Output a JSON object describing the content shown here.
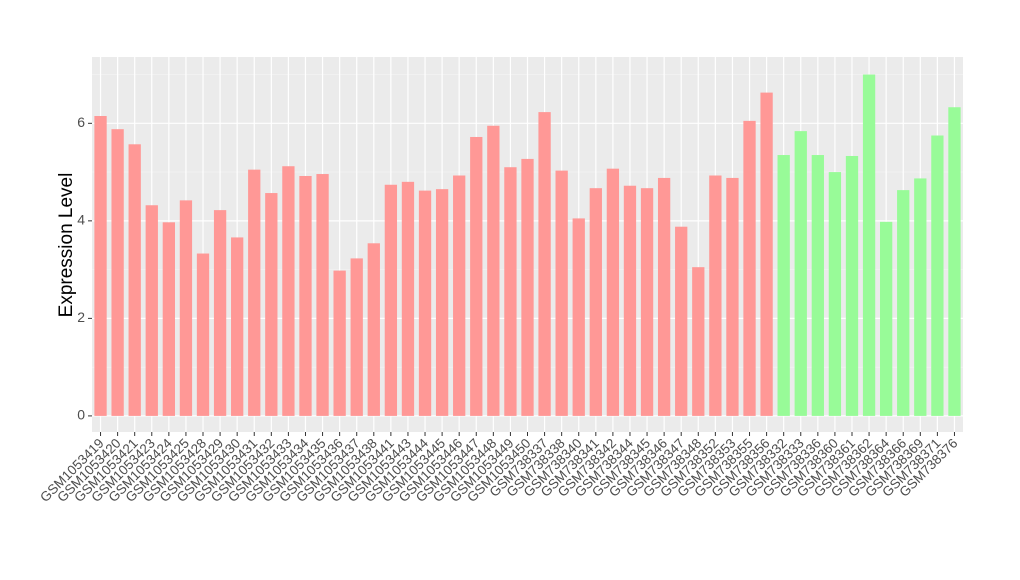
{
  "chart_data": {
    "type": "bar",
    "y_label": "Expression Level",
    "categories": [
      "GSM1053419",
      "GSM1053420",
      "GSM1053421",
      "GSM1053423",
      "GSM1053424",
      "GSM1053425",
      "GSM1053428",
      "GSM1053429",
      "GSM1053430",
      "GSM1053431",
      "GSM1053432",
      "GSM1053433",
      "GSM1053434",
      "GSM1053435",
      "GSM1053436",
      "GSM1053437",
      "GSM1053438",
      "GSM1053441",
      "GSM1053443",
      "GSM1053444",
      "GSM1053445",
      "GSM1053446",
      "GSM1053447",
      "GSM1053448",
      "GSM1053449",
      "GSM1053450",
      "GSM738337",
      "GSM738338",
      "GSM738340",
      "GSM738341",
      "GSM738342",
      "GSM738344",
      "GSM738345",
      "GSM738346",
      "GSM738347",
      "GSM738348",
      "GSM738352",
      "GSM738353",
      "GSM738355",
      "GSM738356",
      "GSM738332",
      "GSM738333",
      "GSM738336",
      "GSM738360",
      "GSM738361",
      "GSM738362",
      "GSM738364",
      "GSM738366",
      "GSM738369",
      "GSM738371",
      "GSM738376"
    ],
    "values": [
      6.15,
      5.88,
      5.57,
      4.32,
      3.97,
      4.42,
      3.33,
      4.22,
      3.66,
      5.05,
      4.57,
      5.12,
      4.92,
      4.96,
      2.98,
      3.23,
      3.54,
      4.74,
      4.8,
      4.62,
      4.65,
      4.93,
      5.72,
      5.95,
      5.1,
      5.27,
      6.23,
      5.03,
      4.05,
      4.67,
      5.07,
      4.72,
      4.67,
      4.88,
      3.88,
      3.05,
      4.93,
      4.88,
      6.05,
      6.63,
      5.35,
      5.84,
      5.35,
      5.0,
      5.33,
      7.0,
      3.98,
      4.63,
      4.87,
      5.75,
      6.33
    ],
    "colors": [
      "#ff9896",
      "#ff9896",
      "#ff9896",
      "#ff9896",
      "#ff9896",
      "#ff9896",
      "#ff9896",
      "#ff9896",
      "#ff9896",
      "#ff9896",
      "#ff9896",
      "#ff9896",
      "#ff9896",
      "#ff9896",
      "#ff9896",
      "#ff9896",
      "#ff9896",
      "#ff9896",
      "#ff9896",
      "#ff9896",
      "#ff9896",
      "#ff9896",
      "#ff9896",
      "#ff9896",
      "#ff9896",
      "#ff9896",
      "#ff9896",
      "#ff9896",
      "#ff9896",
      "#ff9896",
      "#ff9896",
      "#ff9896",
      "#ff9896",
      "#ff9896",
      "#ff9896",
      "#ff9896",
      "#ff9896",
      "#ff9896",
      "#ff9896",
      "#ff9896",
      "#98fb98",
      "#98fb98",
      "#98fb98",
      "#98fb98",
      "#98fb98",
      "#98fb98",
      "#98fb98",
      "#98fb98",
      "#98fb98",
      "#98fb98",
      "#98fb98"
    ],
    "ylim": [
      -0.33,
      7.36
    ],
    "yticks": [
      0,
      2,
      4,
      6
    ],
    "grid": true
  }
}
